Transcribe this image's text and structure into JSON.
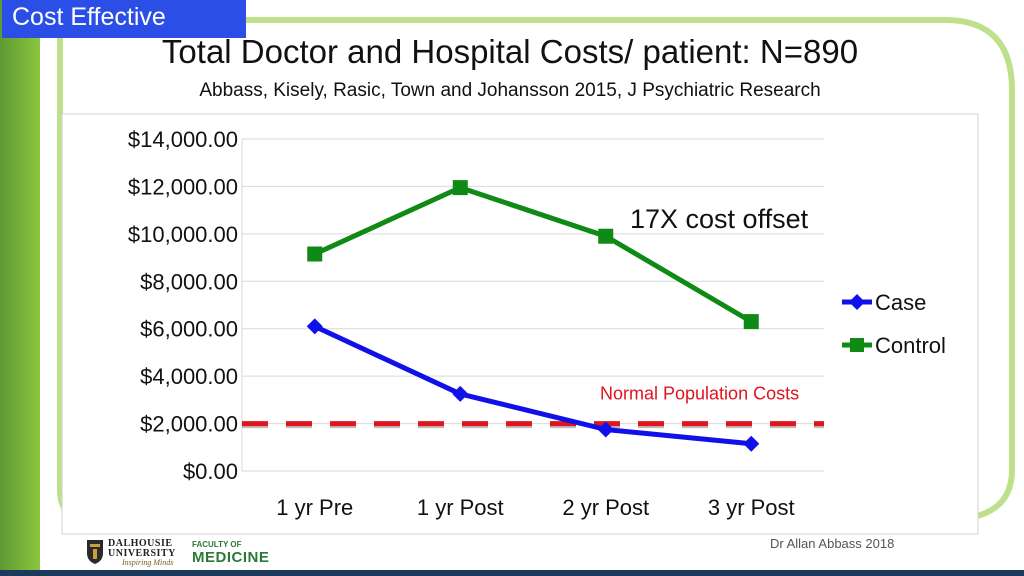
{
  "header": {
    "badge": "Cost Effective",
    "title": "Total Doctor and Hospital Costs/ patient: N=890",
    "subtitle": "Abbass, Kisely, Rasic, Town and Johansson 2015, J Psychiatric Research"
  },
  "chart_data": {
    "type": "line",
    "categories": [
      "1 yr Pre",
      "1 yr Post",
      "2 yr Post",
      "3 yr Post"
    ],
    "series": [
      {
        "name": "Case",
        "values": [
          6100,
          3250,
          1750,
          1150
        ],
        "color": "#1010e8",
        "marker": "diamond"
      },
      {
        "name": "Control",
        "values": [
          9150,
          11950,
          9900,
          6300
        ],
        "color": "#0f8a14",
        "marker": "square"
      }
    ],
    "ylim": [
      0,
      14000
    ],
    "yticks": [
      0,
      2000,
      4000,
      6000,
      8000,
      10000,
      12000,
      14000
    ],
    "ytick_labels": [
      "$0.00",
      "$2,000.00",
      "$4,000.00",
      "$6,000.00",
      "$8,000.00",
      "$10,000.00",
      "$12,000.00",
      "$14,000.00"
    ],
    "reference_line": {
      "value": 2000,
      "label": "Normal  Population Costs",
      "color": "#e0141e"
    },
    "annotation": "17X cost offset",
    "legend": "right",
    "grid": true
  },
  "footer": {
    "author": "Dr Allan Abbass 2018",
    "university": "DALHOUSIE UNIVERSITY",
    "tagline": "Inspiring Minds",
    "faculty_of": "FACULTY OF",
    "faculty": "MEDICINE"
  },
  "colors": {
    "badge": "#2b4fe6",
    "frame": "#8cc63f",
    "sidebar": "#6aa83a",
    "bottom_bar": "#1b3a5c"
  }
}
